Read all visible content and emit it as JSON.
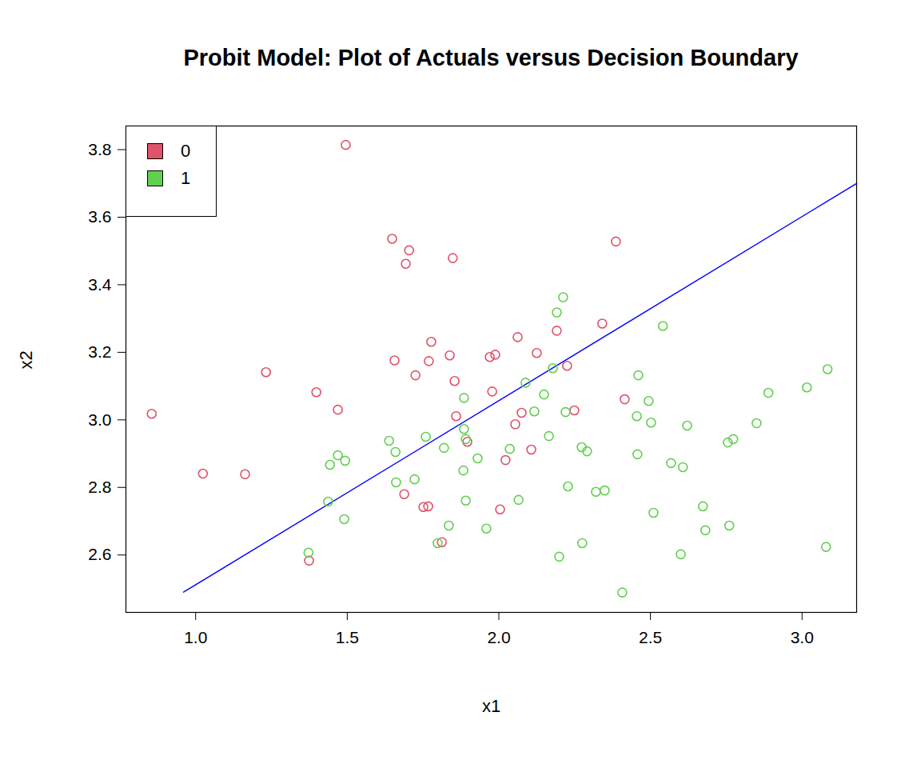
{
  "chart_data": {
    "type": "scatter",
    "title": "Probit Model: Plot of Actuals versus Decision Boundary",
    "x_label": "x1",
    "y_label": "x2",
    "xlim": [
      0.77,
      3.18
    ],
    "ylim": [
      2.43,
      3.87
    ],
    "xticks": [
      {
        "value": 1,
        "label": "1.0"
      },
      1.5,
      {
        "value": 2,
        "label": "2.0"
      },
      2.5,
      {
        "value": 3,
        "label": "3.0"
      }
    ],
    "yticks": [
      2.6,
      2.8,
      {
        "value": 3,
        "label": "3.0"
      },
      3.2,
      3.4,
      3.6,
      3.8
    ],
    "grid": false,
    "legend": "topleft",
    "series": [
      {
        "name": "0",
        "type": "scatter",
        "marker": "open circle",
        "color": "#DF536B",
        "x": [
          0.855,
          1.024,
          1.163,
          1.232,
          1.398,
          1.469,
          1.495,
          1.374,
          1.648,
          1.704,
          1.693,
          1.848,
          1.656,
          1.725,
          1.777,
          1.769,
          1.838,
          1.854,
          1.859,
          1.896,
          1.97,
          1.988,
          1.978,
          1.751,
          1.767,
          1.688,
          1.812,
          2.004,
          2.022,
          2.054,
          2.062,
          2.075,
          2.107,
          2.125,
          2.191,
          2.225,
          2.249,
          2.341,
          2.386,
          2.415
        ],
        "values": [
          3.018,
          2.841,
          2.839,
          3.141,
          3.082,
          3.03,
          3.814,
          2.583,
          3.536,
          3.502,
          3.462,
          3.479,
          3.176,
          3.132,
          3.231,
          3.174,
          3.191,
          3.115,
          3.011,
          2.935,
          3.186,
          3.193,
          3.084,
          2.742,
          2.744,
          2.78,
          2.638,
          2.735,
          2.881,
          2.987,
          3.245,
          3.021,
          2.912,
          3.198,
          3.264,
          3.16,
          3.028,
          3.285,
          3.528,
          3.061
        ]
      },
      {
        "name": "1",
        "type": "scatter",
        "marker": "open circle",
        "color": "#61D04F",
        "x": [
          1.372,
          1.437,
          1.443,
          1.469,
          1.493,
          1.49,
          1.638,
          1.659,
          1.661,
          1.722,
          1.759,
          1.798,
          1.835,
          1.819,
          1.885,
          1.885,
          1.891,
          1.883,
          1.891,
          1.93,
          1.959,
          2.036,
          2.065,
          2.088,
          2.117,
          2.149,
          2.165,
          2.178,
          2.191,
          2.212,
          2.22,
          2.228,
          2.199,
          2.273,
          2.291,
          2.275,
          2.32,
          2.349,
          2.407,
          2.455,
          2.457,
          2.46,
          2.494,
          2.502,
          2.51,
          2.541,
          2.568,
          2.621,
          2.607,
          2.6,
          2.673,
          2.681,
          2.755,
          2.76,
          2.773,
          2.85,
          2.889,
          3.016,
          3.084,
          3.079
        ],
        "values": [
          2.607,
          2.758,
          2.867,
          2.895,
          2.879,
          2.706,
          2.938,
          2.905,
          2.815,
          2.824,
          2.95,
          2.635,
          2.687,
          2.917,
          3.065,
          2.973,
          2.943,
          2.85,
          2.761,
          2.886,
          2.678,
          2.914,
          2.763,
          3.11,
          3.025,
          3.075,
          2.952,
          3.153,
          3.318,
          3.363,
          3.023,
          2.803,
          2.595,
          2.919,
          2.907,
          2.635,
          2.787,
          2.791,
          2.489,
          3.011,
          2.898,
          3.132,
          3.056,
          2.992,
          2.725,
          3.278,
          2.872,
          2.983,
          2.86,
          2.602,
          2.744,
          2.673,
          2.933,
          2.687,
          2.943,
          2.99,
          3.08,
          3.096,
          3.15,
          2.624
        ]
      }
    ],
    "lines": [
      {
        "type": "line",
        "line_style": "solid",
        "color": "#0000FF",
        "x": [
          0.96,
          3.18
        ],
        "values": [
          2.49,
          3.7
        ]
      }
    ]
  }
}
